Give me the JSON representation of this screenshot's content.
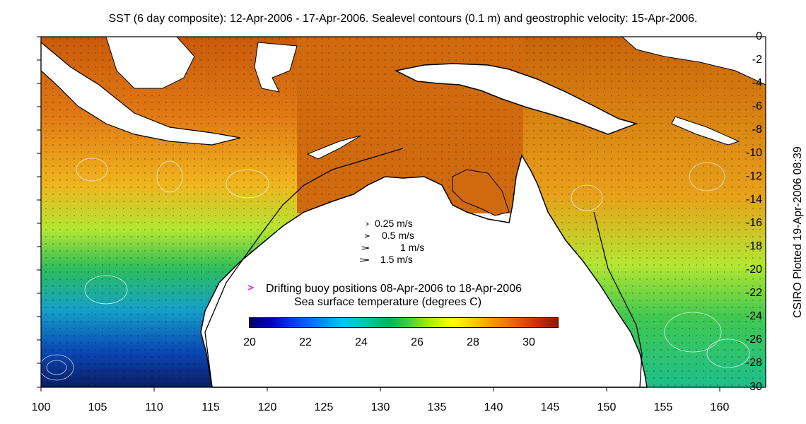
{
  "title": "SST (6 day composite): 12-Apr-2006 - 17-Apr-2006. Sealevel contours (0.1 m) and geostrophic velocity: 15-Apr-2006.",
  "side_label": "CSIRO Plotted 19-Apr-2006 08:39",
  "y_ticks": [
    "0",
    "-2",
    "-4",
    "-6",
    "-8",
    "-10",
    "-12",
    "-14",
    "-16",
    "-18",
    "-20",
    "-22",
    "-24",
    "-26",
    "-28",
    "-30"
  ],
  "x_ticks": [
    "100",
    "105",
    "110",
    "115",
    "120",
    "125",
    "130",
    "135",
    "140",
    "145",
    "150",
    "155",
    "160"
  ],
  "velocity_legend": [
    "0.25 m/s",
    "0.5 m/s",
    "1 m/s",
    "1.5 m/s"
  ],
  "buoy_text": "Drifting buoy positions 08-Apr-2006 to 18-Apr-2006",
  "buoy_color": "#ff00ff",
  "colorbar_title": "Sea surface temperature (degrees C)",
  "colorbar_ticks": [
    "20",
    "22",
    "24",
    "26",
    "28",
    "30"
  ]
}
